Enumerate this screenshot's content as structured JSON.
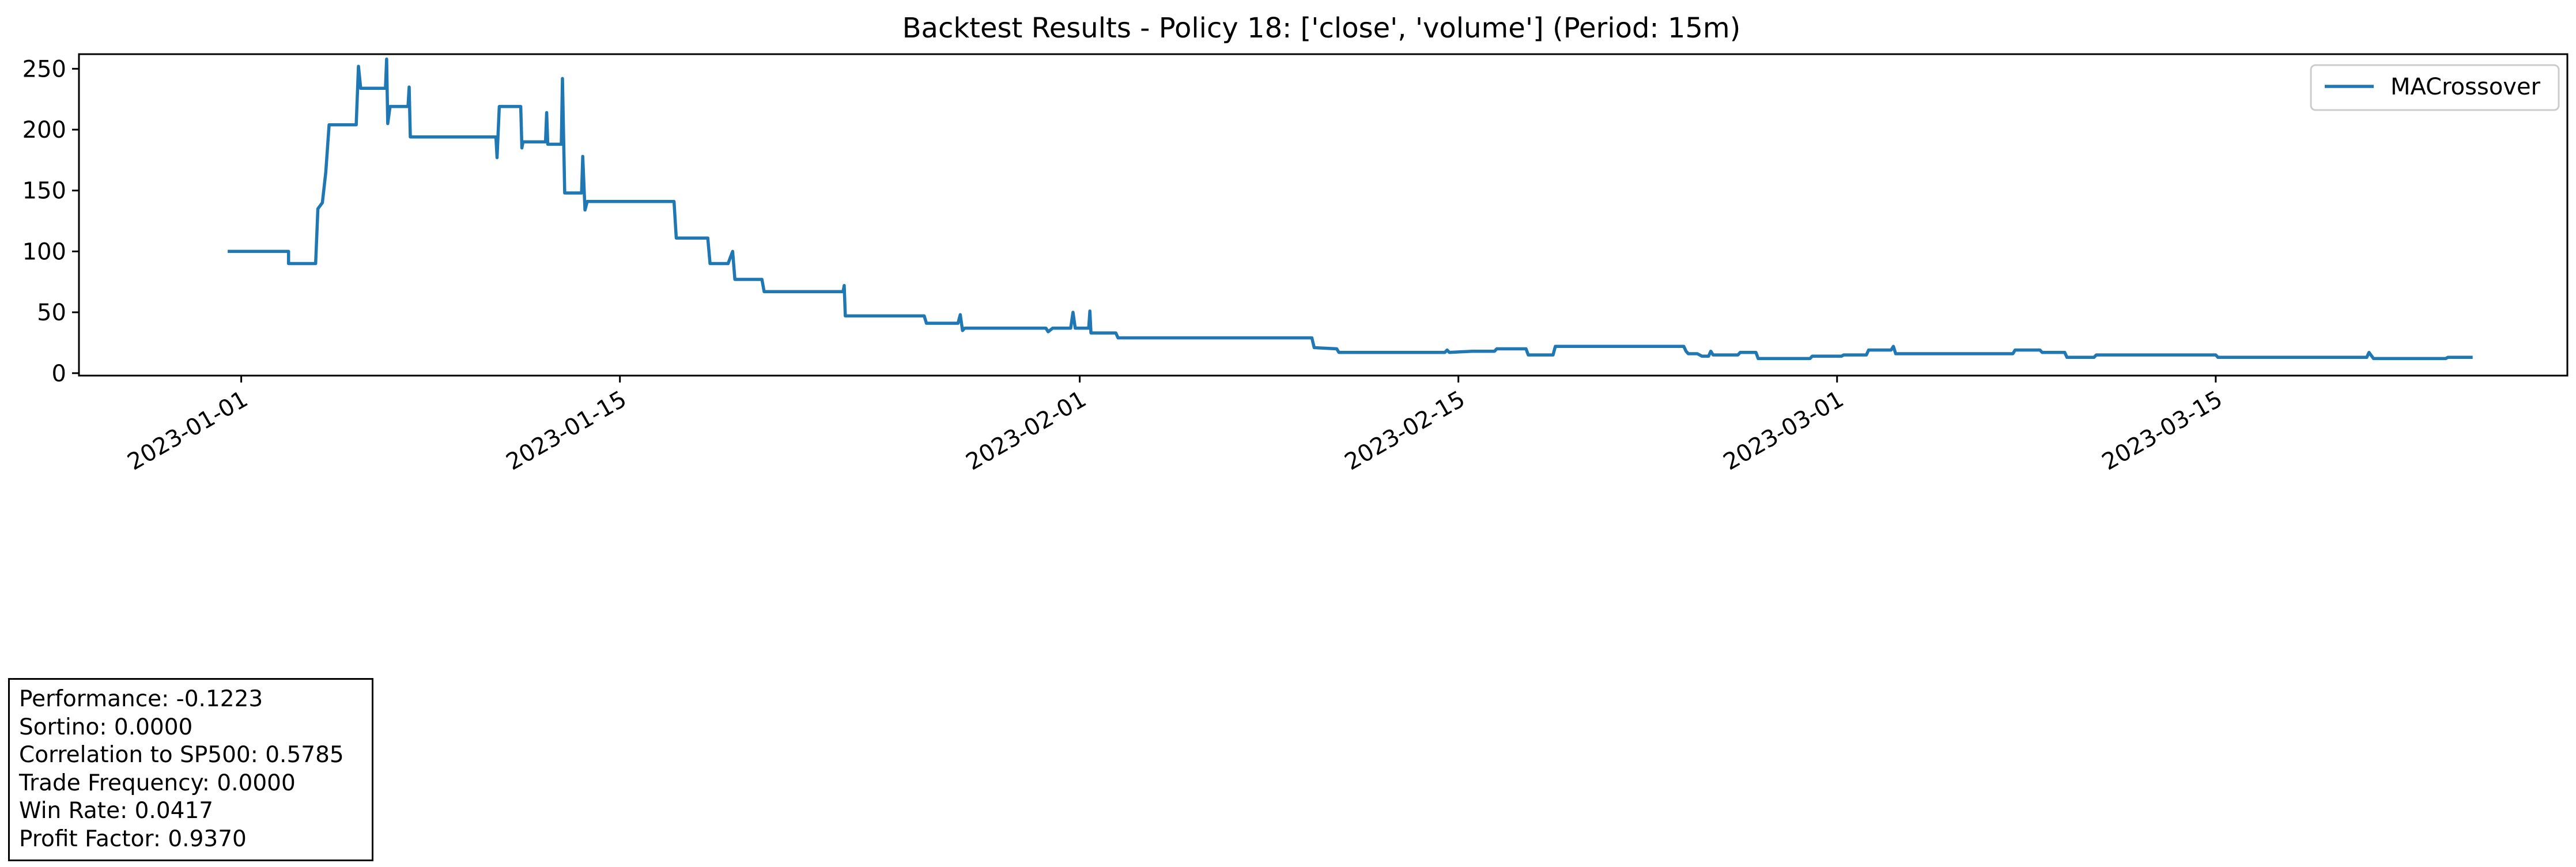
{
  "chart_data": {
    "type": "line",
    "title": "Backtest Results - Policy 18: ['close', 'volume'] (Period: 15m)",
    "xlabel": "",
    "ylabel": "",
    "x_axis": "date",
    "xlim": [
      "2022-12-26",
      "2023-03-28"
    ],
    "ylim": [
      -2,
      262
    ],
    "x_ticks": [
      "2023-01-01",
      "2023-01-15",
      "2023-02-01",
      "2023-02-15",
      "2023-03-01",
      "2023-03-15"
    ],
    "y_ticks": [
      0,
      50,
      100,
      150,
      200,
      250
    ],
    "grid": false,
    "legend": "top-right",
    "colors": {
      "line": "#1f77b4"
    },
    "series": [
      {
        "name": "MACrossover",
        "points": [
          [
            "2022-12-31T12:00",
            100
          ],
          [
            "2023-01-02T18:00",
            100
          ],
          [
            "2023-01-02T18:00",
            90
          ],
          [
            "2023-01-03T18:00",
            90
          ],
          [
            "2023-01-03T20:00",
            135
          ],
          [
            "2023-01-04T00:00",
            140
          ],
          [
            "2023-01-04T03:00",
            165
          ],
          [
            "2023-01-04T06:00",
            204
          ],
          [
            "2023-01-05T06:00",
            204
          ],
          [
            "2023-01-05T08:00",
            252
          ],
          [
            "2023-01-05T10:00",
            234
          ],
          [
            "2023-01-06T08:00",
            234
          ],
          [
            "2023-01-06T09:00",
            258
          ],
          [
            "2023-01-06T10:00",
            205
          ],
          [
            "2023-01-06T12:00",
            219
          ],
          [
            "2023-01-07T04:00",
            219
          ],
          [
            "2023-01-07T05:00",
            235
          ],
          [
            "2023-01-07T06:00",
            194
          ],
          [
            "2023-01-10T10:00",
            194
          ],
          [
            "2023-01-10T11:00",
            177
          ],
          [
            "2023-01-10T13:00",
            219
          ],
          [
            "2023-01-11T08:00",
            219
          ],
          [
            "2023-01-11T09:00",
            185
          ],
          [
            "2023-01-11T10:00",
            190
          ],
          [
            "2023-01-12T06:00",
            190
          ],
          [
            "2023-01-12T07:00",
            214
          ],
          [
            "2023-01-12T08:00",
            188
          ],
          [
            "2023-01-12T20:00",
            188
          ],
          [
            "2023-01-12T21:00",
            242
          ],
          [
            "2023-01-12T23:00",
            148
          ],
          [
            "2023-01-13T14:00",
            148
          ],
          [
            "2023-01-13T15:00",
            178
          ],
          [
            "2023-01-13T17:00",
            134
          ],
          [
            "2023-01-13T19:00",
            141
          ],
          [
            "2023-01-17T00:00",
            141
          ],
          [
            "2023-01-17T02:00",
            111
          ],
          [
            "2023-01-18T06:00",
            111
          ],
          [
            "2023-01-18T08:00",
            90
          ],
          [
            "2023-01-19T00:00",
            90
          ],
          [
            "2023-01-19T04:00",
            100
          ],
          [
            "2023-01-19T06:00",
            77
          ],
          [
            "2023-01-20T06:00",
            77
          ],
          [
            "2023-01-20T08:00",
            67
          ],
          [
            "2023-01-23T06:00",
            67
          ],
          [
            "2023-01-23T07:00",
            72
          ],
          [
            "2023-01-23T08:00",
            47
          ],
          [
            "2023-01-26T06:00",
            47
          ],
          [
            "2023-01-26T08:00",
            41
          ],
          [
            "2023-01-27T12:00",
            41
          ],
          [
            "2023-01-27T14:00",
            48
          ],
          [
            "2023-01-27T16:00",
            35
          ],
          [
            "2023-01-27T18:00",
            37
          ],
          [
            "2023-01-30T18:00",
            37
          ],
          [
            "2023-01-30T20:00",
            34
          ],
          [
            "2023-01-31T00:00",
            37
          ],
          [
            "2023-01-31T16:00",
            37
          ],
          [
            "2023-01-31T18:00",
            50
          ],
          [
            "2023-01-31T20:00",
            37
          ],
          [
            "2023-02-01T08:00",
            37
          ],
          [
            "2023-02-01T09:00",
            51
          ],
          [
            "2023-02-01T10:00",
            33
          ],
          [
            "2023-02-02T08:00",
            33
          ],
          [
            "2023-02-02T10:00",
            29
          ],
          [
            "2023-02-09T14:00",
            29
          ],
          [
            "2023-02-09T16:00",
            21
          ],
          [
            "2023-02-10T12:00",
            20
          ],
          [
            "2023-02-10T14:00",
            17
          ],
          [
            "2023-02-14T12:00",
            17
          ],
          [
            "2023-02-14T14:00",
            19
          ],
          [
            "2023-02-14T16:00",
            17
          ],
          [
            "2023-02-15T12:00",
            18
          ],
          [
            "2023-02-16T08:00",
            18
          ],
          [
            "2023-02-16T10:00",
            20
          ],
          [
            "2023-02-17T12:00",
            20
          ],
          [
            "2023-02-17T14:00",
            15
          ],
          [
            "2023-02-18T12:00",
            15
          ],
          [
            "2023-02-18T14:00",
            22
          ],
          [
            "2023-02-23T08:00",
            22
          ],
          [
            "2023-02-23T10:00",
            18
          ],
          [
            "2023-02-23T12:00",
            16
          ],
          [
            "2023-02-23T20:00",
            16
          ],
          [
            "2023-02-24T00:00",
            14
          ],
          [
            "2023-02-24T06:00",
            14
          ],
          [
            "2023-02-24T08:00",
            18
          ],
          [
            "2023-02-24T10:00",
            15
          ],
          [
            "2023-02-25T08:00",
            15
          ],
          [
            "2023-02-25T10:00",
            17
          ],
          [
            "2023-02-26T00:00",
            17
          ],
          [
            "2023-02-26T02:00",
            12
          ],
          [
            "2023-02-28T00:00",
            12
          ],
          [
            "2023-02-28T02:00",
            14
          ],
          [
            "2023-03-01T04:00",
            14
          ],
          [
            "2023-03-01T06:00",
            15
          ],
          [
            "2023-03-02T02:00",
            15
          ],
          [
            "2023-03-02T04:00",
            19
          ],
          [
            "2023-03-03T00:00",
            19
          ],
          [
            "2023-03-03T02:00",
            22
          ],
          [
            "2023-03-03T04:00",
            16
          ],
          [
            "2023-03-07T12:00",
            16
          ],
          [
            "2023-03-07T14:00",
            19
          ],
          [
            "2023-03-08T12:00",
            19
          ],
          [
            "2023-03-08T14:00",
            17
          ],
          [
            "2023-03-09T10:00",
            17
          ],
          [
            "2023-03-09T12:00",
            13
          ],
          [
            "2023-03-10T12:00",
            13
          ],
          [
            "2023-03-10T14:00",
            15
          ],
          [
            "2023-03-15T00:00",
            15
          ],
          [
            "2023-03-15T02:00",
            13
          ],
          [
            "2023-03-20T14:00",
            13
          ],
          [
            "2023-03-20T16:00",
            17
          ],
          [
            "2023-03-20T20:00",
            12
          ],
          [
            "2023-03-23T12:00",
            12
          ],
          [
            "2023-03-23T14:00",
            13
          ],
          [
            "2023-03-24T12:00",
            13
          ]
        ]
      }
    ]
  },
  "stats": {
    "lines": [
      "Performance: -0.1223",
      "Sortino: 0.0000",
      "Correlation to SP500: 0.5785",
      "Trade Frequency: 0.0000",
      "Win Rate: 0.0417",
      "Profit Factor: 0.9370"
    ]
  }
}
